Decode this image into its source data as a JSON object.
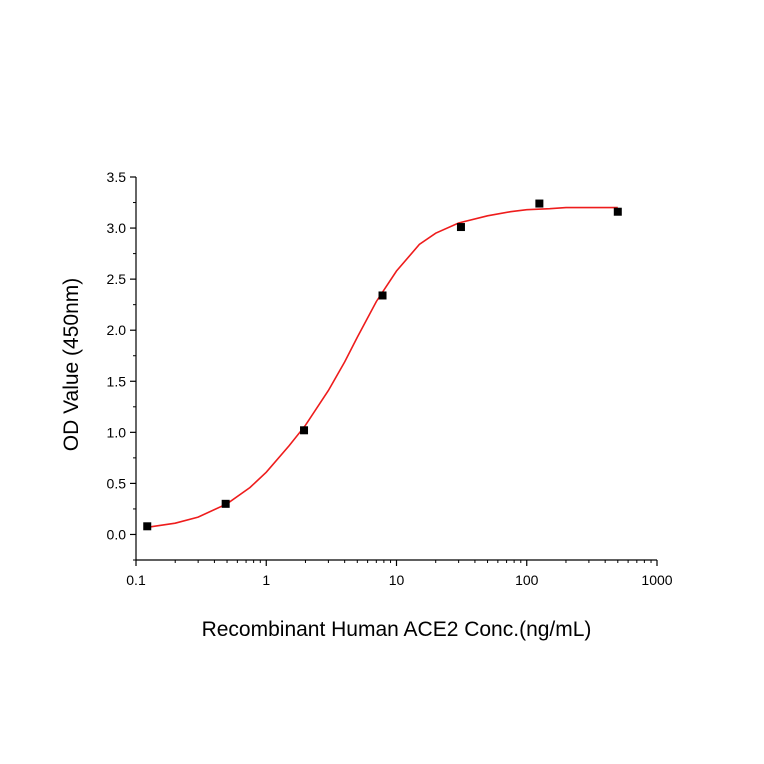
{
  "chart_data": {
    "type": "scatter",
    "xlabel": "Recombinant Human ACE2 Conc.(ng/mL)",
    "ylabel": "OD Value (450nm)",
    "x_scale": "log",
    "xlim": [
      0.1,
      1000
    ],
    "ylim": [
      -0.25,
      3.5
    ],
    "x_ticks": [
      0.1,
      1,
      10,
      100,
      1000
    ],
    "x_tick_labels": [
      "0.1",
      "1",
      "10",
      "100",
      "1000"
    ],
    "y_ticks": [
      0.0,
      0.5,
      1.0,
      1.5,
      2.0,
      2.5,
      3.0,
      3.5
    ],
    "y_tick_labels": [
      "0.0",
      "0.5",
      "1.0",
      "1.5",
      "2.0",
      "2.5",
      "3.0",
      "3.5"
    ],
    "grid": false,
    "series": [
      {
        "kind": "points",
        "marker": "square",
        "color": "#000000",
        "x": [
          0.122,
          0.488,
          1.95,
          7.81,
          31.25,
          125,
          500
        ],
        "y": [
          0.08,
          0.3,
          1.02,
          2.34,
          3.01,
          3.24,
          3.16
        ]
      },
      {
        "kind": "fit-curve",
        "color": "#ee1c1c",
        "x": [
          0.122,
          0.2,
          0.3,
          0.5,
          0.75,
          1,
          1.5,
          2,
          3,
          4,
          5,
          7,
          10,
          15,
          20,
          30,
          50,
          75,
          100,
          150,
          200,
          300,
          500
        ],
        "y": [
          0.07,
          0.11,
          0.17,
          0.3,
          0.46,
          0.61,
          0.87,
          1.07,
          1.41,
          1.69,
          1.93,
          2.28,
          2.58,
          2.84,
          2.95,
          3.05,
          3.12,
          3.16,
          3.18,
          3.19,
          3.2,
          3.2,
          3.2
        ]
      }
    ]
  }
}
